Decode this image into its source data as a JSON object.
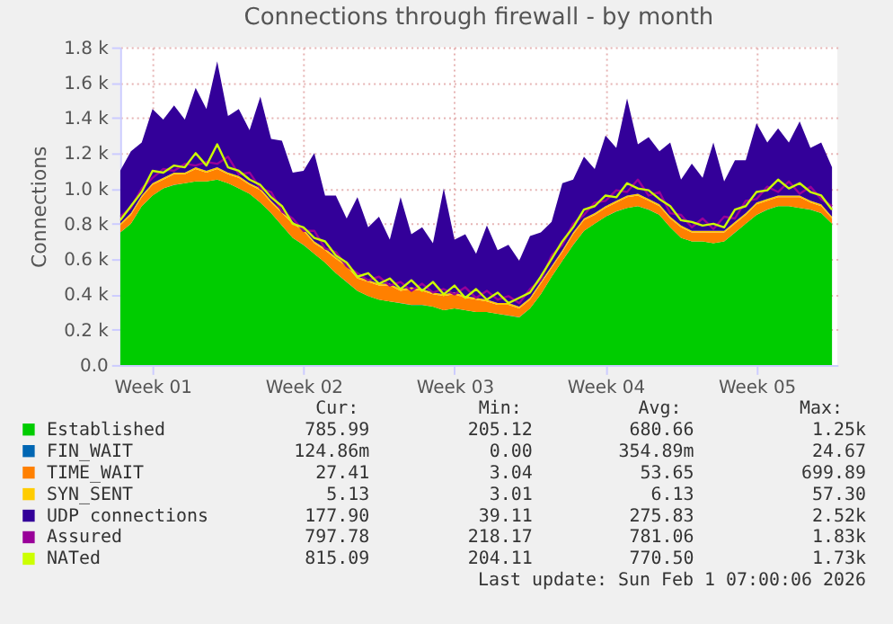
{
  "chart_data": {
    "type": "area",
    "title": "Connections through firewall - by month",
    "ylabel": "Connections",
    "stacked": true,
    "grid": true,
    "legend": "bottom",
    "ylim": [
      0,
      1800
    ],
    "yticks": [
      {
        "value": 0,
        "label": "0.0"
      },
      {
        "value": 200,
        "label": "0.2 k"
      },
      {
        "value": 400,
        "label": "0.4 k"
      },
      {
        "value": 600,
        "label": "0.6 k"
      },
      {
        "value": 800,
        "label": "0.8 k"
      },
      {
        "value": 1000,
        "label": "1.0 k"
      },
      {
        "value": 1200,
        "label": "1.2 k"
      },
      {
        "value": 1400,
        "label": "1.4 k"
      },
      {
        "value": 1600,
        "label": "1.6 k"
      },
      {
        "value": 1800,
        "label": "1.8 k"
      }
    ],
    "categories": [
      null,
      null,
      null,
      "Week 01",
      null,
      null,
      null,
      null,
      null,
      null,
      null,
      null,
      null,
      null,
      null,
      null,
      null,
      "Week 02",
      null,
      null,
      null,
      null,
      null,
      null,
      null,
      null,
      null,
      null,
      null,
      null,
      null,
      "Week 03",
      null,
      null,
      null,
      null,
      null,
      null,
      null,
      null,
      null,
      null,
      null,
      null,
      null,
      "Week 04",
      null,
      null,
      null,
      null,
      null,
      null,
      null,
      null,
      null,
      null,
      null,
      null,
      null,
      "Week 05",
      null,
      null,
      null,
      null,
      null,
      null,
      null
    ],
    "series": [
      {
        "name": "Established",
        "color": "#00cc00",
        "values": [
          750,
          800,
          900,
          960,
          1000,
          1020,
          1030,
          1040,
          1040,
          1050,
          1030,
          1000,
          970,
          920,
          860,
          790,
          720,
          680,
          630,
          580,
          520,
          470,
          420,
          390,
          370,
          360,
          350,
          340,
          340,
          330,
          310,
          320,
          310,
          300,
          300,
          290,
          280,
          270,
          320,
          400,
          500,
          590,
          680,
          760,
          800,
          840,
          870,
          890,
          900,
          880,
          850,
          780,
          720,
          700,
          700,
          690,
          700,
          750,
          800,
          850,
          880,
          900,
          900,
          890,
          880,
          860,
          800
        ]
      },
      {
        "name": "FIN_WAIT",
        "color": "#0066b3",
        "values": [
          0.35,
          0.35,
          0.35,
          0.35,
          0.35,
          0.35,
          0.35,
          0.35,
          0.35,
          0.35,
          0.35,
          0.35,
          0.35,
          0.35,
          0.35,
          0.35,
          0.35,
          0.35,
          0.35,
          0.35,
          0.35,
          0.35,
          0.35,
          0.35,
          0.35,
          0.35,
          0.35,
          0.35,
          0.35,
          0.35,
          0.35,
          0.35,
          0.35,
          0.35,
          0.35,
          0.35,
          0.35,
          0.35,
          0.35,
          0.35,
          0.35,
          0.35,
          0.35,
          0.35,
          0.35,
          0.35,
          0.35,
          0.35,
          0.35,
          0.35,
          0.35,
          0.35,
          0.35,
          0.35,
          0.35,
          0.35,
          0.35,
          0.35,
          0.35,
          0.35,
          0.35,
          0.35,
          0.35,
          0.35,
          0.35,
          0.35,
          0.35
        ]
      },
      {
        "name": "TIME_WAIT",
        "color": "#ff8000",
        "values": [
          40,
          50,
          50,
          60,
          50,
          60,
          50,
          70,
          50,
          60,
          50,
          60,
          50,
          70,
          60,
          70,
          80,
          80,
          60,
          70,
          80,
          90,
          70,
          80,
          80,
          90,
          70,
          90,
          80,
          70,
          80,
          80,
          70,
          70,
          60,
          50,
          60,
          50,
          50,
          60,
          50,
          50,
          60,
          60,
          50,
          50,
          50,
          60,
          60,
          50,
          50,
          50,
          60,
          50,
          50,
          60,
          50,
          50,
          50,
          60,
          50,
          50,
          50,
          60,
          40,
          40,
          30
        ]
      },
      {
        "name": "SYN_SENT",
        "color": "#ffcc00",
        "values": [
          10,
          10,
          10,
          10,
          10,
          10,
          10,
          10,
          10,
          10,
          10,
          10,
          10,
          10,
          10,
          10,
          10,
          10,
          10,
          10,
          10,
          10,
          10,
          10,
          10,
          10,
          10,
          10,
          10,
          10,
          10,
          10,
          10,
          10,
          10,
          10,
          10,
          10,
          10,
          10,
          10,
          10,
          10,
          10,
          10,
          10,
          10,
          10,
          10,
          10,
          10,
          10,
          10,
          10,
          10,
          10,
          10,
          10,
          10,
          10,
          10,
          10,
          10,
          10,
          10,
          10,
          10
        ]
      },
      {
        "name": "UDP connections",
        "color": "#330099",
        "values": [
          300,
          350,
          300,
          420,
          330,
          380,
          300,
          450,
          350,
          600,
          320,
          380,
          300,
          520,
          350,
          400,
          280,
          330,
          500,
          300,
          350,
          260,
          450,
          300,
          380,
          250,
          520,
          300,
          350,
          280,
          600,
          300,
          350,
          250,
          420,
          300,
          330,
          260,
          350,
          280,
          250,
          380,
          300,
          350,
          250,
          400,
          300,
          550,
          280,
          350,
          300,
          420,
          260,
          380,
          300,
          500,
          280,
          350,
          300,
          450,
          320,
          380,
          300,
          420,
          300,
          350,
          280
        ]
      },
      {
        "name": "Assured",
        "color": "#990099",
        "type": "line",
        "values": [
          840,
          890,
          1000,
          1060,
          1110,
          1100,
          1140,
          1130,
          1150,
          1140,
          1180,
          1080,
          1090,
          1000,
          980,
          870,
          830,
          760,
          760,
          660,
          640,
          560,
          520,
          480,
          500,
          450,
          470,
          420,
          460,
          410,
          430,
          400,
          440,
          380,
          420,
          370,
          390,
          350,
          430,
          480,
          620,
          680,
          800,
          850,
          920,
          930,
          990,
          980,
          1050,
          960,
          980,
          860,
          850,
          780,
          830,
          770,
          840,
          830,
          930,
          940,
          1010,
          980,
          1040,
          970,
          1010,
          940,
          900
        ]
      },
      {
        "name": "NATed",
        "color": "#ccff00",
        "type": "line",
        "values": [
          820,
          900,
          980,
          1100,
          1090,
          1130,
          1120,
          1200,
          1130,
          1250,
          1120,
          1100,
          1050,
          1020,
          950,
          900,
          800,
          780,
          720,
          700,
          620,
          580,
          500,
          520,
          460,
          490,
          430,
          480,
          420,
          470,
          400,
          450,
          380,
          430,
          370,
          410,
          350,
          380,
          410,
          500,
          600,
          700,
          780,
          880,
          900,
          960,
          950,
          1030,
          1000,
          990,
          940,
          900,
          820,
          810,
          790,
          800,
          780,
          880,
          900,
          980,
          990,
          1050,
          1000,
          1030,
          980,
          960,
          880
        ]
      }
    ],
    "annotations": [
      "Cur:",
      "Min:",
      "Avg:",
      "Max:",
      "785.99",
      "205.12",
      "680.66",
      "1.25k",
      "124.86m",
      "0.00",
      "354.89m",
      "24.67",
      "27.41",
      "3.04",
      "53.65",
      "699.89",
      "5.13",
      "3.01",
      "6.13",
      "57.30",
      "177.90",
      "39.11",
      "275.83",
      "2.52k",
      "797.78",
      "218.17",
      "781.06",
      "1.83k",
      "815.09",
      "204.11",
      "770.50",
      "1.73k",
      "Last update: Sun Feb  1 07:00:06 2026"
    ]
  }
}
